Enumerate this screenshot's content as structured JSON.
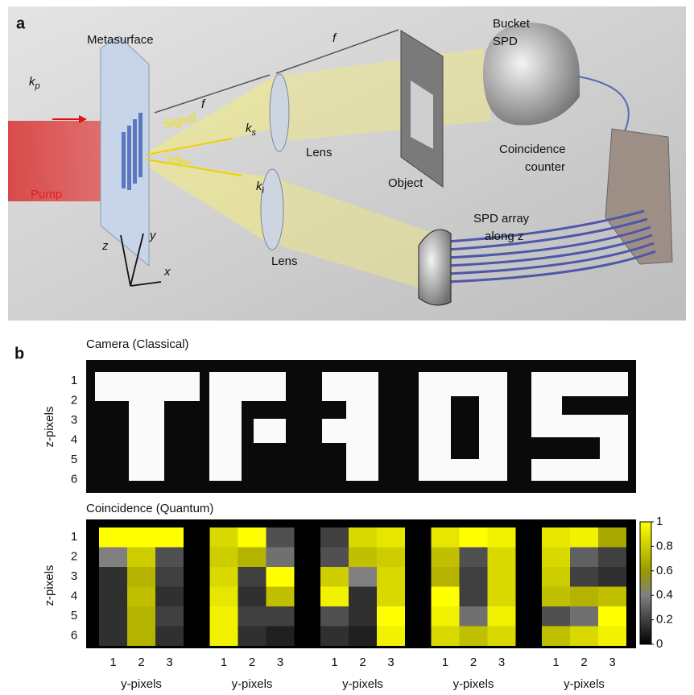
{
  "panel_a": {
    "label": "a",
    "metasurface": "Metasurface",
    "f_left": "f",
    "f_right": "f",
    "bucket": "Bucket",
    "bucket_spd": "SPD",
    "kp": {
      "base": "k",
      "sub": "p"
    },
    "pump": "Pump",
    "signal": "Signal",
    "idler": "Idler",
    "ks": {
      "base": "k",
      "sub": "s"
    },
    "ki": {
      "base": "k",
      "sub": "i"
    },
    "lens_top": "Lens",
    "lens_bottom": "Lens",
    "object": "Object",
    "coincidence": "Coincidence",
    "counter": "counter",
    "spd_array": "SPD array",
    "along_z": "along z",
    "axis_z": "z",
    "axis_y": "y",
    "axis_x": "x"
  },
  "panel_b": {
    "label": "b",
    "camera_title": "Camera (Classical)",
    "quantum_title": "Coincidence (Quantum)",
    "ylabel": "z-pixels",
    "xlabel": "y-pixels",
    "row_ticks": [
      1,
      2,
      3,
      4,
      5,
      6
    ],
    "col_ticks": [
      1,
      2,
      3
    ],
    "heatmaps": [
      [
        [
          1,
          1,
          1
        ],
        [
          0.4,
          0.8,
          0.25
        ],
        [
          0.15,
          0.7,
          0.2
        ],
        [
          0.15,
          0.75,
          0.15
        ],
        [
          0.15,
          0.7,
          0.2
        ],
        [
          0.15,
          0.7,
          0.15
        ]
      ],
      [
        [
          0.85,
          1,
          0.25
        ],
        [
          0.8,
          0.7,
          0.35
        ],
        [
          0.85,
          0.2,
          1
        ],
        [
          0.9,
          0.15,
          0.75
        ],
        [
          0.95,
          0.2,
          0.2
        ],
        [
          0.95,
          0.15,
          0.1
        ]
      ],
      [
        [
          0.2,
          0.85,
          0.9
        ],
        [
          0.25,
          0.75,
          0.8
        ],
        [
          0.8,
          0.4,
          0.85
        ],
        [
          0.95,
          0.15,
          0.85
        ],
        [
          0.25,
          0.15,
          1
        ],
        [
          0.15,
          0.1,
          0.95
        ]
      ],
      [
        [
          0.9,
          1,
          0.95
        ],
        [
          0.75,
          0.25,
          0.85
        ],
        [
          0.7,
          0.2,
          0.85
        ],
        [
          1,
          0.2,
          0.85
        ],
        [
          0.95,
          0.35,
          0.95
        ],
        [
          0.85,
          0.75,
          0.85
        ]
      ],
      [
        [
          0.9,
          0.95,
          0.65
        ],
        [
          0.85,
          0.3,
          0.2
        ],
        [
          0.8,
          0.2,
          0.15
        ],
        [
          0.75,
          0.7,
          0.75
        ],
        [
          0.25,
          0.35,
          1
        ],
        [
          0.75,
          0.85,
          0.95
        ]
      ]
    ],
    "colorbar": {
      "lim": [
        0,
        1
      ],
      "ticks": [
        0,
        0.2,
        0.4,
        0.6,
        0.8,
        1
      ]
    }
  }
}
